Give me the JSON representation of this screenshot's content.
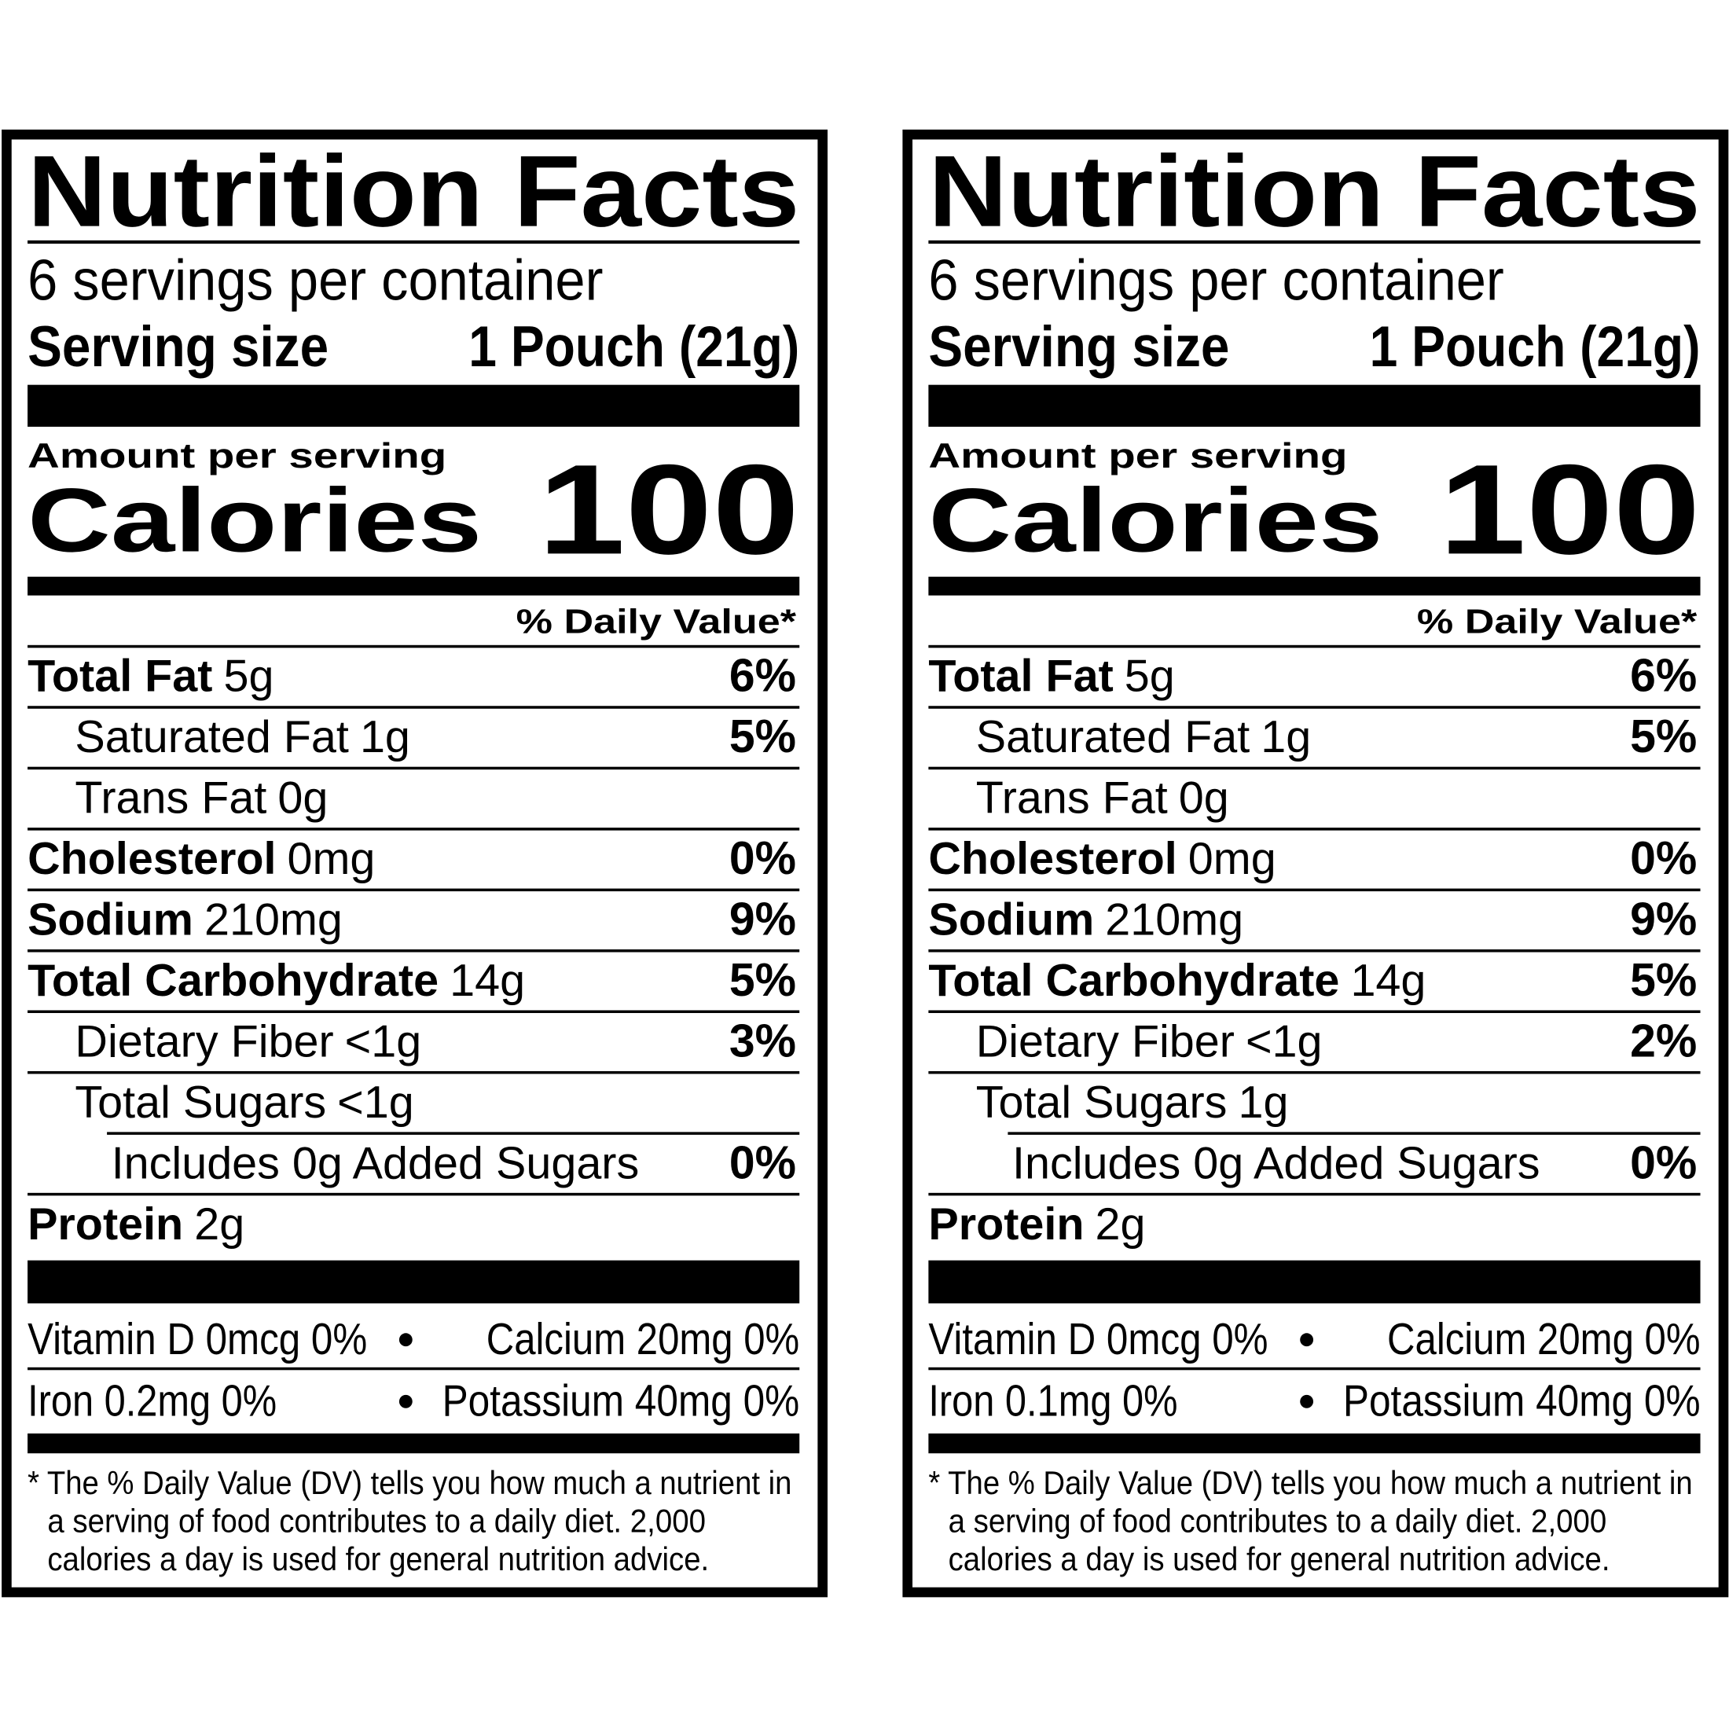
{
  "labels": [
    {
      "title": "Nutrition Facts",
      "servings": "6 servings per container",
      "serving_size_label": "Serving size",
      "serving_size_value": "1 Pouch (21g)",
      "amount_per_serving": "Amount per serving",
      "calories_label": "Calories",
      "calories_value": "100",
      "daily_value_header": "% Daily Value*",
      "nutrients": [
        {
          "name": "Total Fat",
          "amount": "5g",
          "dv": "6%"
        },
        {
          "name": "Saturated Fat",
          "amount": "1g",
          "dv": "5%"
        },
        {
          "name": "Trans Fat",
          "amount": "0g"
        },
        {
          "name": "Cholesterol",
          "amount": "0mg",
          "dv": "0%"
        },
        {
          "name": "Sodium",
          "amount": "210mg",
          "dv": "9%"
        },
        {
          "name": "Total Carbohydrate",
          "amount": "14g",
          "dv": "5%"
        },
        {
          "name": "Dietary Fiber",
          "amount": "<1g",
          "dv": "3%"
        },
        {
          "name": "Total Sugars",
          "amount": "<1g"
        },
        {
          "name": "Includes 0g Added Sugars",
          "dv": "0%"
        },
        {
          "name": "Protein",
          "amount": "2g"
        }
      ],
      "vitamins": [
        [
          "Vitamin D 0mcg 0%",
          "Calcium 20mg 0%"
        ],
        [
          "Iron 0.2mg 0%",
          "Potassium 40mg 0%"
        ]
      ],
      "footnote": [
        "* The % Daily Value (DV) tells you how much a nutrient in",
        "a serving of food contributes to a daily diet. 2,000",
        "calories a day is used for general nutrition advice."
      ]
    },
    {
      "title": "Nutrition Facts",
      "servings": "6 servings per container",
      "serving_size_label": "Serving size",
      "serving_size_value": "1 Pouch (21g)",
      "amount_per_serving": "Amount per serving",
      "calories_label": "Calories",
      "calories_value": "100",
      "daily_value_header": "% Daily Value*",
      "nutrients": [
        {
          "name": "Total Fat",
          "amount": "5g",
          "dv": "6%"
        },
        {
          "name": "Saturated Fat",
          "amount": "1g",
          "dv": "5%"
        },
        {
          "name": "Trans Fat",
          "amount": "0g"
        },
        {
          "name": "Cholesterol",
          "amount": "0mg",
          "dv": "0%"
        },
        {
          "name": "Sodium",
          "amount": "210mg",
          "dv": "9%"
        },
        {
          "name": "Total Carbohydrate",
          "amount": "14g",
          "dv": "5%"
        },
        {
          "name": "Dietary Fiber",
          "amount": "<1g",
          "dv": "2%"
        },
        {
          "name": "Total Sugars",
          "amount": "1g"
        },
        {
          "name": "Includes 0g Added Sugars",
          "dv": "0%"
        },
        {
          "name": "Protein",
          "amount": "2g"
        }
      ],
      "vitamins": [
        [
          "Vitamin D 0mcg 0%",
          "Calcium 20mg 0%"
        ],
        [
          "Iron 0.1mg 0%",
          "Potassium 40mg 0%"
        ]
      ],
      "footnote": [
        "* The % Daily Value (DV) tells you how much a nutrient in",
        "a serving of food contributes to a daily diet. 2,000",
        "calories a day is used for general nutrition advice."
      ]
    }
  ]
}
